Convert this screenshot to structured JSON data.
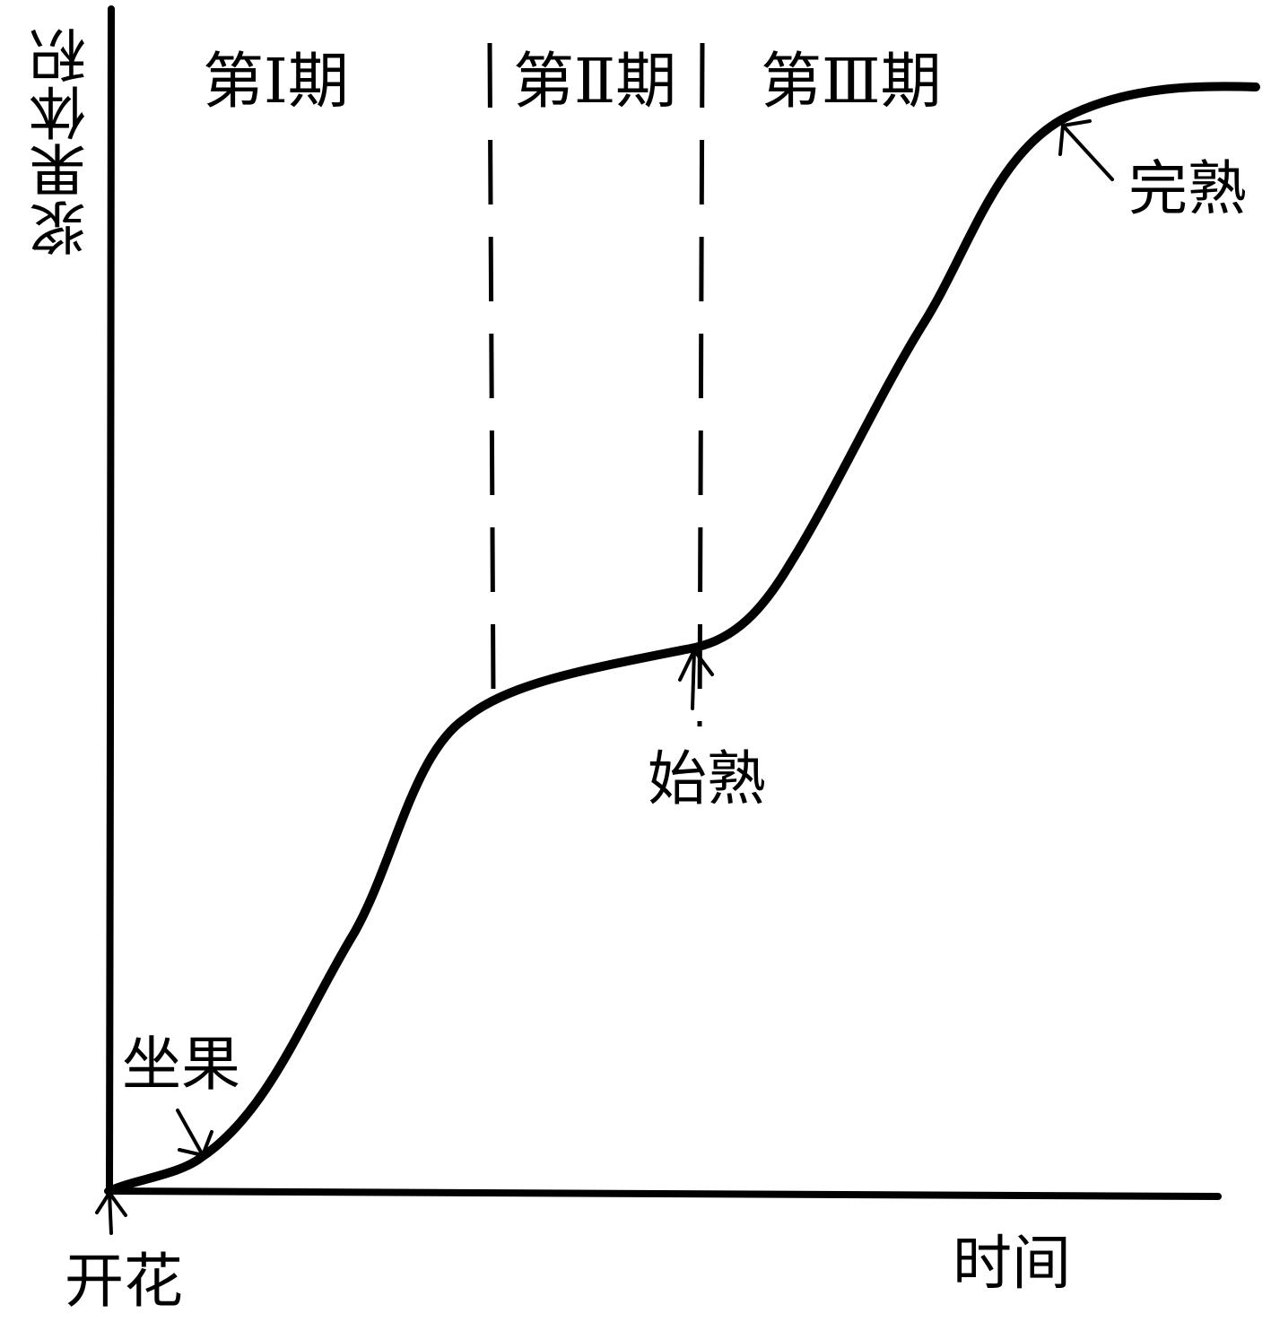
{
  "axes": {
    "y_label": "浆果体积",
    "x_label": "时间"
  },
  "phases": [
    {
      "label": "第Ⅰ期"
    },
    {
      "label": "第Ⅱ期"
    },
    {
      "label": "第Ⅲ期"
    }
  ],
  "annotations": {
    "flowering": "开花",
    "fruit_set": "坐果",
    "veraison": "始熟",
    "full_ripe": "完熟"
  },
  "colors": {
    "ink": "#000000",
    "background": "#ffffff"
  }
}
